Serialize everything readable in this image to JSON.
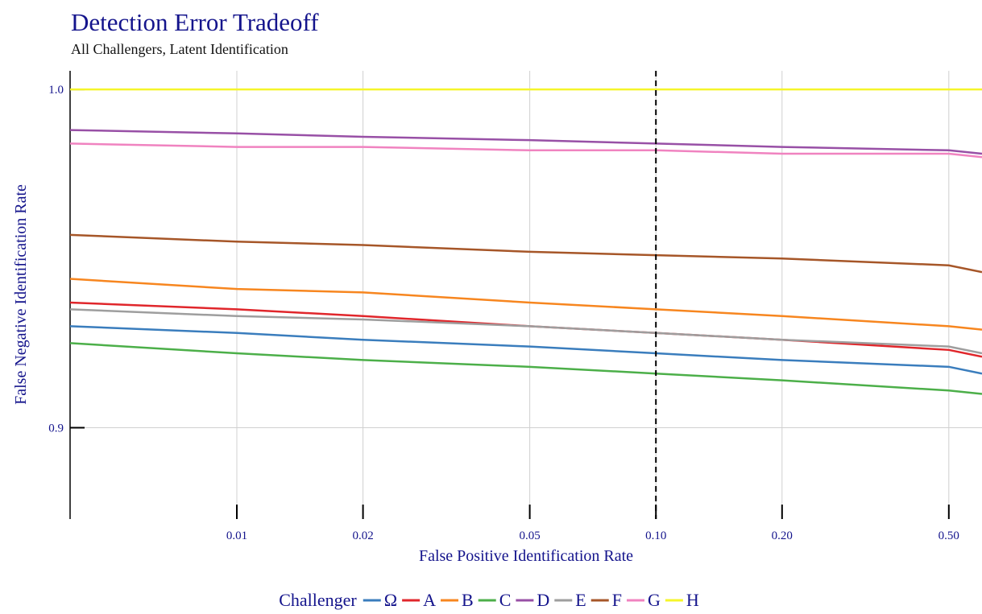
{
  "chart_data": {
    "type": "line",
    "title": "Detection Error Tradeoff",
    "subtitle": "All Challengers, Latent Identification",
    "x_label": "False Positive Identification Rate",
    "y_label": "False Negative Identification Rate",
    "legend_title": "Challenger",
    "legend_position": "bottom",
    "x_scale": "log",
    "grid": true,
    "vline": 0.1,
    "x": [
      0.004,
      0.01,
      0.02,
      0.05,
      0.1,
      0.2,
      0.5,
      0.6
    ],
    "xlim": [
      0.004,
      0.6
    ],
    "xticks": [
      0.01,
      0.02,
      0.05,
      {
        "value": 0.1,
        "label": "0.10"
      },
      {
        "value": 0.2,
        "label": "0.20"
      },
      {
        "value": 0.5,
        "label": "0.50"
      }
    ],
    "ylim": [
      0.873,
      1.0055
    ],
    "yticks": [
      0.9,
      {
        "value": 1,
        "label": "1.0"
      }
    ],
    "series": [
      {
        "name": "Ω",
        "color": "#3a7dbd",
        "values": [
          0.93,
          0.928,
          0.926,
          0.924,
          0.922,
          0.92,
          0.918,
          0.916
        ]
      },
      {
        "name": "A",
        "color": "#e0262b",
        "values": [
          0.937,
          0.935,
          0.933,
          0.93,
          0.928,
          0.926,
          0.923,
          0.921
        ]
      },
      {
        "name": "B",
        "color": "#f7861f",
        "values": [
          0.944,
          0.941,
          0.94,
          0.937,
          0.935,
          0.933,
          0.93,
          0.929
        ]
      },
      {
        "name": "C",
        "color": "#4caf49",
        "values": [
          0.925,
          0.922,
          0.92,
          0.918,
          0.916,
          0.914,
          0.911,
          0.91
        ]
      },
      {
        "name": "D",
        "color": "#9850a6",
        "values": [
          0.988,
          0.987,
          0.986,
          0.985,
          0.984,
          0.983,
          0.982,
          0.981
        ]
      },
      {
        "name": "E",
        "color": "#9e9e9e",
        "values": [
          0.935,
          0.933,
          0.932,
          0.93,
          0.928,
          0.926,
          0.924,
          0.922
        ]
      },
      {
        "name": "F",
        "color": "#a65628",
        "values": [
          0.957,
          0.955,
          0.954,
          0.952,
          0.951,
          0.95,
          0.948,
          0.946
        ]
      },
      {
        "name": "G",
        "color": "#f083c0",
        "values": [
          0.984,
          0.983,
          0.983,
          0.982,
          0.982,
          0.981,
          0.981,
          0.98
        ]
      },
      {
        "name": "H",
        "color": "#f5f52a",
        "values": [
          1,
          1,
          1,
          1,
          1,
          1,
          1,
          1
        ]
      }
    ]
  }
}
